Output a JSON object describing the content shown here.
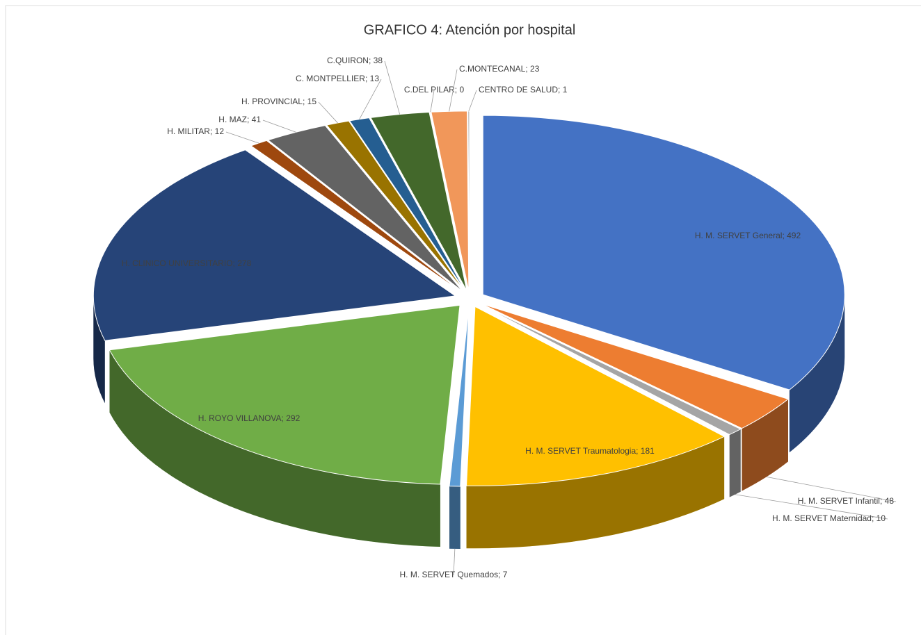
{
  "chart_data": {
    "type": "pie3d",
    "title": "GRAFICO 4: Atención por hospital",
    "label_separator": "; ",
    "categories": [
      "H. M. SERVET  General",
      "H. M. SERVET Infantil",
      "H. M. SERVET Maternidad",
      "H. M. SERVET Traumatologia",
      "H. M. SERVET Quemados",
      "H. ROYO VILLANOVA",
      "H. CLINICO UNIVERSITARIO",
      "H. MILITAR",
      "H. MAZ",
      "H. PROVINCIAL",
      "C. MONTPELLIER",
      "C.QUIRON",
      "C.DEL PILAR",
      "C.MONTECANAL",
      "CENTRO DE SALUD"
    ],
    "values": [
      492,
      48,
      10,
      181,
      7,
      292,
      278,
      12,
      41,
      15,
      13,
      38,
      0,
      23,
      1
    ],
    "colors": [
      "#4472c4",
      "#ed7d31",
      "#a5a5a5",
      "#ffc000",
      "#5b9bd5",
      "#70ad47",
      "#264478",
      "#9e480e",
      "#636363",
      "#997300",
      "#255e91",
      "#43682b",
      "#698ed0",
      "#f1975a",
      "#b7b7b7"
    ]
  }
}
